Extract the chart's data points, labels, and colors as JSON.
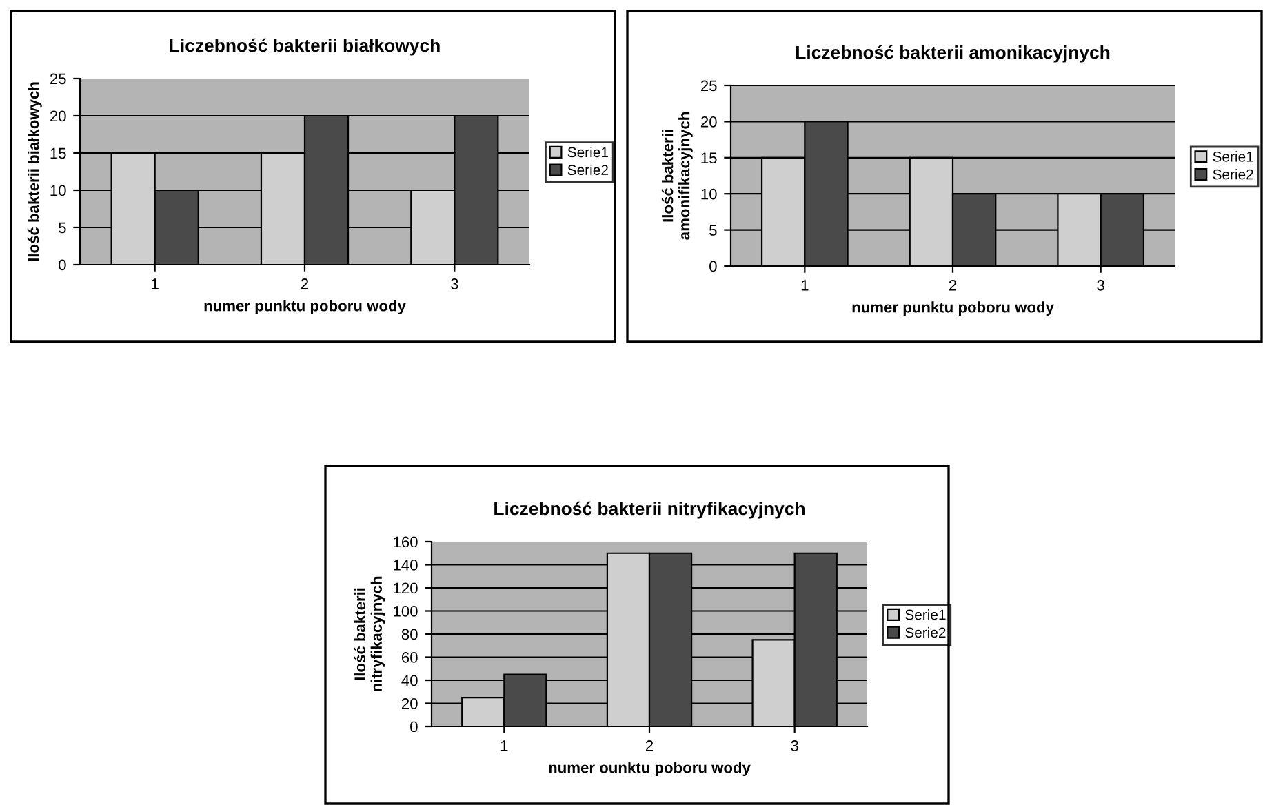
{
  "chart_data": [
    {
      "type": "bar",
      "title": "Liczebność bakterii białkowych",
      "xlabel": "numer punktu poboru wody",
      "ylabel": "Ilość bakterii białkowych",
      "categories": [
        "1",
        "2",
        "3"
      ],
      "series": [
        {
          "name": "Serie1",
          "color": "#cfcfcf",
          "values": [
            15,
            15,
            10
          ]
        },
        {
          "name": "Serie2",
          "color": "#4a4a4a",
          "values": [
            10,
            20,
            20
          ]
        }
      ],
      "ylim": [
        0,
        25
      ],
      "yticks": [
        0,
        5,
        10,
        15,
        20,
        25
      ],
      "grid": "y",
      "legend": "right"
    },
    {
      "type": "bar",
      "title": "Liczebność bakterii amonikacyjnych",
      "xlabel": "numer punktu poboru wody",
      "ylabel": "Ilość bakterii\namonifikacyjnych",
      "categories": [
        "1",
        "2",
        "3"
      ],
      "series": [
        {
          "name": "Serie1",
          "color": "#cfcfcf",
          "values": [
            15,
            15,
            10
          ]
        },
        {
          "name": "Serie2",
          "color": "#4a4a4a",
          "values": [
            20,
            10,
            10
          ]
        }
      ],
      "ylim": [
        0,
        25
      ],
      "yticks": [
        0,
        5,
        10,
        15,
        20,
        25
      ],
      "grid": "y",
      "legend": "right"
    },
    {
      "type": "bar",
      "title": "Liczebność bakterii nitryfikacyjnych",
      "xlabel": "numer ounktu poboru wody",
      "ylabel": "Ilość bakterii\nnitryfikacyjnych",
      "categories": [
        "1",
        "2",
        "3"
      ],
      "series": [
        {
          "name": "Serie1",
          "color": "#cfcfcf",
          "values": [
            25,
            150,
            75
          ]
        },
        {
          "name": "Serie2",
          "color": "#4a4a4a",
          "values": [
            45,
            150,
            150
          ]
        }
      ],
      "ylim": [
        0,
        160
      ],
      "yticks": [
        0,
        20,
        40,
        60,
        80,
        100,
        120,
        140,
        160
      ],
      "grid": "y",
      "legend": "right"
    }
  ]
}
